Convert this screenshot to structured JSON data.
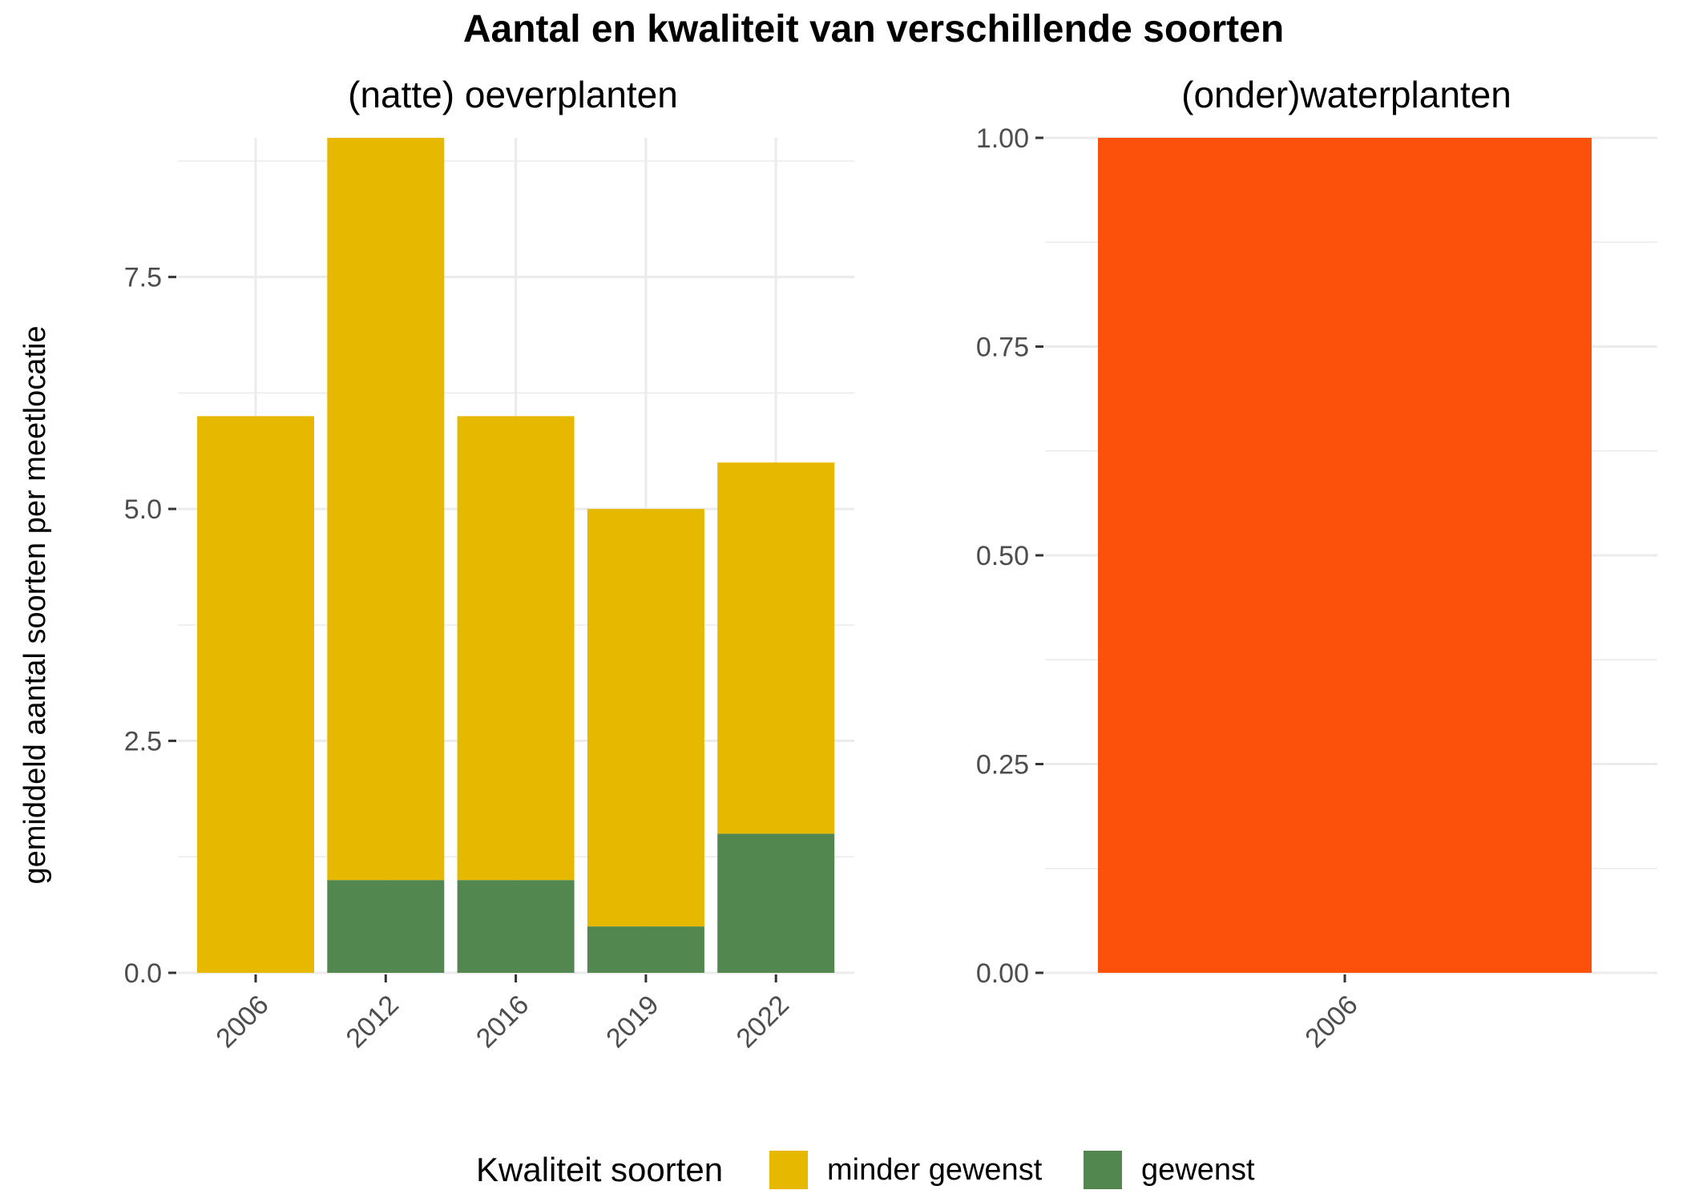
{
  "colors": {
    "minder_gewenst": "#E6B800",
    "gewenst": "#52874F",
    "onderwater": "#FC510A",
    "grid": "#EBEBEB",
    "tick": "#333333"
  },
  "chart_data": {
    "type": "bar",
    "title": "Aantal en kwaliteit van verschillende soorten",
    "ylabel": "gemiddeld aantal soorten per meetlocatie",
    "legend": {
      "title": "Kwaliteit soorten",
      "position": "bottom",
      "entries": [
        {
          "name": "minder gewenst",
          "color_key": "minder_gewenst"
        },
        {
          "name": "gewenst",
          "color_key": "gewenst"
        }
      ]
    },
    "panels": [
      {
        "title": "(natte) oeverplanten",
        "stacked": true,
        "categories": [
          "2006",
          "2012",
          "2016",
          "2019",
          "2022"
        ],
        "series": [
          {
            "name": "gewenst",
            "values": [
              0,
              1,
              1,
              0.5,
              1.5
            ]
          },
          {
            "name": "minder gewenst",
            "values": [
              6,
              8,
              5,
              4.5,
              4
            ]
          }
        ],
        "ylim": [
          0,
          9
        ],
        "yticks": [
          0,
          2.5,
          5,
          7.5
        ],
        "ytick_labels": [
          "0.0",
          "2.5",
          "5.0",
          "7.5"
        ],
        "grid": true
      },
      {
        "title": "(onder)waterplanten",
        "stacked": false,
        "categories": [
          "2006"
        ],
        "values": [
          1.0
        ],
        "ylim": [
          0,
          1
        ],
        "yticks": [
          0,
          0.25,
          0.5,
          0.75,
          1.0
        ],
        "ytick_labels": [
          "0.00",
          "0.25",
          "0.50",
          "0.75",
          "1.00"
        ],
        "grid": true
      }
    ]
  }
}
